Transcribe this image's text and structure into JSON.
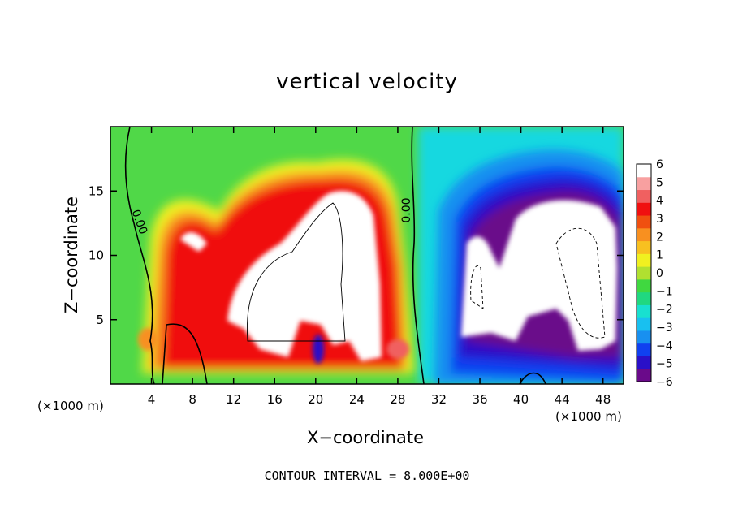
{
  "chart_data": {
    "type": "heatmap",
    "title": "vertical velocity",
    "xlabel": "X−coordinate",
    "ylabel": "Z−coordinate",
    "x_unit_left": "(×1000 m)",
    "x_unit_right": "(×1000 m)",
    "footer": "CONTOUR INTERVAL = 8.000E+00",
    "xlim": [
      0,
      50
    ],
    "ylim": [
      0,
      20
    ],
    "x_ticks": [
      4,
      8,
      12,
      16,
      20,
      24,
      28,
      32,
      36,
      40,
      44,
      48
    ],
    "y_ticks": [
      5,
      10,
      15
    ],
    "colorbar": {
      "min": -6,
      "max": 6,
      "ticks": [
        6,
        5,
        4,
        3,
        2,
        1,
        0,
        -1,
        -2,
        -3,
        -4,
        -5,
        -6
      ],
      "colors": [
        "#6a0a8a",
        "#2a10c8",
        "#1040f0",
        "#1890f0",
        "#18c0f0",
        "#18e0d0",
        "#20d880",
        "#40d840",
        "#b0e030",
        "#f0f020",
        "#f8c020",
        "#f89020",
        "#f05010",
        "#f01010",
        "#f06060",
        "#f8a0a0",
        "#ffffff"
      ]
    },
    "contour_labels": [
      {
        "x": 2.5,
        "y": 12.5,
        "text": "0.00"
      },
      {
        "x": 29.2,
        "y": 13.5,
        "text": "0.00"
      }
    ],
    "features": [
      {
        "x": 19,
        "z": 9,
        "w": 8.5,
        "type": "updraft core",
        "peak": 8
      },
      {
        "x": 14,
        "z": 7,
        "w": 7,
        "type": "updraft core",
        "peak": 8
      },
      {
        "x": 24.5,
        "z": 12,
        "w": 7,
        "type": "updraft core",
        "peak": 8
      },
      {
        "x": 7.2,
        "z": 10.5,
        "w": 5.5,
        "type": "updraft",
        "peak": 6
      },
      {
        "x": 37,
        "z": 9,
        "w": -8,
        "type": "downdraft core",
        "peak": -8
      },
      {
        "x": 44.5,
        "z": 11,
        "w": -8,
        "type": "downdraft core",
        "peak": -8
      }
    ]
  }
}
